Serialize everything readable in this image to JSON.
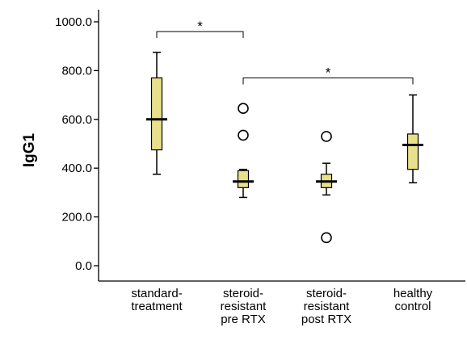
{
  "chart_data": {
    "type": "boxplot",
    "title": "",
    "ylabel": "IgG1",
    "xlabel": "",
    "ylim": [
      0,
      1000
    ],
    "yticks": [
      0,
      200,
      400,
      600,
      800,
      1000
    ],
    "ytick_labels": [
      "0.0",
      "200.0",
      "400.0",
      "600.0",
      "800.0",
      "1000.0"
    ],
    "grid": false,
    "box_color": "#e8e08a",
    "categories": [
      {
        "lines": [
          "standard-",
          "treatment"
        ]
      },
      {
        "lines": [
          "steroid-",
          "resistant",
          "pre RTX"
        ]
      },
      {
        "lines": [
          "steroid-",
          "resistant",
          "post RTX"
        ]
      },
      {
        "lines": [
          "healthy",
          "control"
        ]
      }
    ],
    "boxes": [
      {
        "whisker_low": 375,
        "q1": 475,
        "median": 600,
        "q3": 770,
        "whisker_high": 875,
        "outliers": []
      },
      {
        "whisker_low": 280,
        "q1": 320,
        "median": 345,
        "q3": 390,
        "whisker_high": 395,
        "outliers": [
          535,
          645
        ]
      },
      {
        "whisker_low": 290,
        "q1": 320,
        "median": 345,
        "q3": 375,
        "whisker_high": 420,
        "outliers": [
          115,
          530
        ]
      },
      {
        "whisker_low": 340,
        "q1": 395,
        "median": 495,
        "q3": 540,
        "whisker_high": 700,
        "outliers": []
      }
    ],
    "annotations": [
      {
        "from": 0,
        "to": 1,
        "level": 960,
        "label": "*"
      },
      {
        "from": 1,
        "to": 3,
        "level": 770,
        "label": "*"
      }
    ]
  }
}
